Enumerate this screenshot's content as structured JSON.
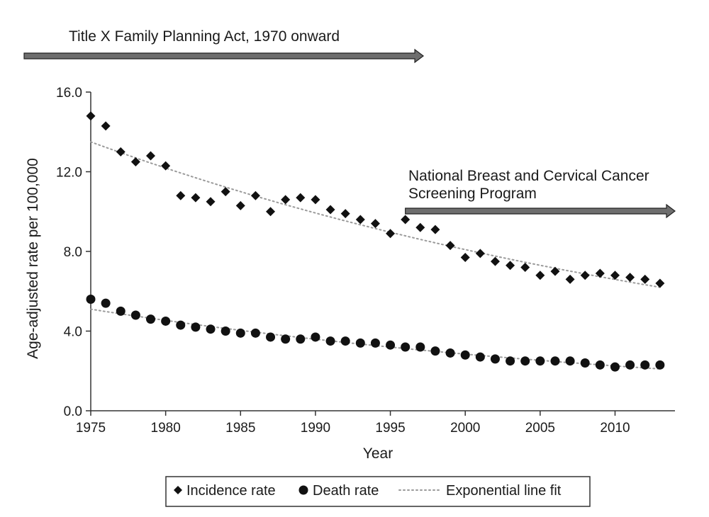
{
  "chart_data": {
    "type": "scatter",
    "title": "",
    "xlabel": "Year",
    "ylabel": "Age-adjusted rate per 100,000",
    "xlim": [
      1975,
      2014
    ],
    "ylim": [
      0,
      16
    ],
    "x_ticks": [
      1975,
      1980,
      1985,
      1990,
      1995,
      2000,
      2005,
      2010
    ],
    "x_tick_labels": [
      "1975",
      "1980",
      "1985",
      "1990",
      "1995",
      "2000",
      "2005",
      "2010"
    ],
    "y_ticks": [
      0,
      4,
      8,
      12,
      16
    ],
    "y_tick_labels": [
      "0.0",
      "4.0",
      "8.0",
      "12.0",
      "16.0"
    ],
    "grid": false,
    "x": [
      1975,
      1976,
      1977,
      1978,
      1979,
      1980,
      1981,
      1982,
      1983,
      1984,
      1985,
      1986,
      1987,
      1988,
      1989,
      1990,
      1991,
      1992,
      1993,
      1994,
      1995,
      1996,
      1997,
      1998,
      1999,
      2000,
      2001,
      2002,
      2003,
      2004,
      2005,
      2006,
      2007,
      2008,
      2009,
      2010,
      2011,
      2012,
      2013
    ],
    "series": [
      {
        "name": "Incidence rate",
        "marker": "diamond",
        "values": [
          14.8,
          14.3,
          13.0,
          12.5,
          12.8,
          12.3,
          10.8,
          10.7,
          10.5,
          11.0,
          10.3,
          10.8,
          10.0,
          10.6,
          10.7,
          10.6,
          10.1,
          9.9,
          9.6,
          9.4,
          8.9,
          9.6,
          9.2,
          9.1,
          8.3,
          7.7,
          7.9,
          7.5,
          7.3,
          7.2,
          6.8,
          7.0,
          6.6,
          6.8,
          6.9,
          6.8,
          6.7,
          6.6,
          6.4
        ]
      },
      {
        "name": "Death rate",
        "marker": "circle",
        "values": [
          5.6,
          5.4,
          5.0,
          4.8,
          4.6,
          4.5,
          4.3,
          4.2,
          4.1,
          4.0,
          3.9,
          3.9,
          3.7,
          3.6,
          3.6,
          3.7,
          3.5,
          3.5,
          3.4,
          3.4,
          3.3,
          3.2,
          3.2,
          3.0,
          2.9,
          2.8,
          2.7,
          2.6,
          2.5,
          2.5,
          2.5,
          2.5,
          2.5,
          2.4,
          2.3,
          2.2,
          2.3,
          2.3,
          2.3
        ]
      }
    ],
    "fits": [
      {
        "name": "Incidence fit",
        "type": "exponential",
        "from": 1975,
        "to": 2013,
        "start_value": 13.5,
        "end_value": 6.2
      },
      {
        "name": "Death fit",
        "type": "exponential",
        "from": 1975,
        "to": 2013,
        "start_value": 5.1,
        "end_value": 2.1
      }
    ],
    "annotations": [
      {
        "text_lines": [
          "Title X Family Planning Act, 1970 onward"
        ],
        "arrow_from_year": 1970,
        "arrow_to_year": 1997.2
      },
      {
        "text_lines": [
          "National Breast and Cervical Cancer",
          "Screening Program"
        ],
        "arrow_from_year": 1996,
        "arrow_to_year": 2014
      }
    ],
    "legend": {
      "position": "bottom-center",
      "items": [
        {
          "symbol": "◆",
          "label": "Incidence rate"
        },
        {
          "symbol": "●",
          "label": "Death rate"
        },
        {
          "symbol": "dotted-line",
          "label": "Exponential line fit"
        }
      ]
    },
    "colors": {
      "markers": "#111111",
      "fit_line": "#9a9a9a",
      "arrow_fill": "#6e6e6e",
      "arrow_stroke": "#222222",
      "axis": "#333333"
    }
  }
}
